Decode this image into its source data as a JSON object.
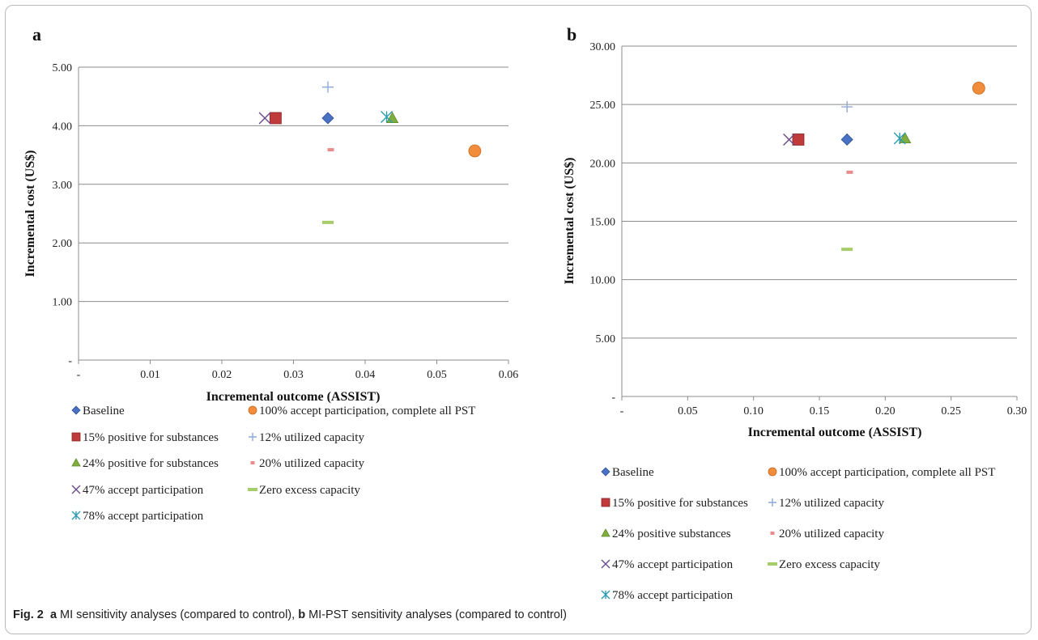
{
  "caption": {
    "label": "Fig. 2",
    "a_letter": "a",
    "a_text": "MI sensitivity analyses (compared to control),",
    "b_letter": "b",
    "b_text": "MI-PST sensitivity analyses (compared to control)"
  },
  "colors": {
    "baseline": "#4a72c4",
    "complete_all_pst": "#f08c3a",
    "pos15": "#c0393b",
    "util12": "#8fa9d8",
    "pos24": "#7fae3e",
    "util20": "#e88c8c",
    "accept47": "#6b4a8a",
    "zero_excess": "#a7cc6a",
    "accept78": "#2e9bb0"
  },
  "chart_data": [
    {
      "panel": "a",
      "type": "scatter",
      "xlabel": "Incremental outcome (ASSIST)",
      "ylabel": "Incremental cost (US$)",
      "xlim": [
        0,
        0.06
      ],
      "ylim": [
        0,
        5
      ],
      "xticks": [
        "-",
        "0.01",
        "0.02",
        "0.03",
        "0.04",
        "0.05",
        "0.06"
      ],
      "yticks": [
        "-",
        "1.00",
        "2.00",
        "3.00",
        "4.00",
        "5.00"
      ],
      "grid": "horizontal",
      "legend_position": "bottom",
      "series": [
        {
          "name": "Baseline",
          "marker": "diamond",
          "color_key": "baseline",
          "x": 0.0348,
          "y": 4.13
        },
        {
          "name": "100% accept participation, complete all PST",
          "marker": "circle",
          "color_key": "complete_all_pst",
          "x": 0.0553,
          "y": 3.57
        },
        {
          "name": "15% positive for substances",
          "marker": "square",
          "color_key": "pos15",
          "x": 0.0275,
          "y": 4.13
        },
        {
          "name": "12% utilized capacity",
          "marker": "plus",
          "color_key": "util12",
          "x": 0.0348,
          "y": 4.66
        },
        {
          "name": "24% positive for substances",
          "marker": "triangle",
          "color_key": "pos24",
          "x": 0.0438,
          "y": 4.13
        },
        {
          "name": "20% utilized capacity",
          "marker": "dash",
          "color_key": "util20",
          "x": 0.0352,
          "y": 3.59
        },
        {
          "name": "47% accept participation",
          "marker": "x",
          "color_key": "accept47",
          "x": 0.026,
          "y": 4.13
        },
        {
          "name": "Zero excess capacity",
          "marker": "longdash",
          "color_key": "zero_excess",
          "x": 0.0348,
          "y": 2.35
        },
        {
          "name": "78% accept participation",
          "marker": "star",
          "color_key": "accept78",
          "x": 0.043,
          "y": 4.15
        }
      ]
    },
    {
      "panel": "b",
      "type": "scatter",
      "xlabel": "Incremental outcome (ASSIST)",
      "ylabel": "Incremental cost (US$)",
      "xlim": [
        0,
        0.3
      ],
      "ylim": [
        0,
        30
      ],
      "xticks": [
        "-",
        "0.05",
        "0.10",
        "0.15",
        "0.20",
        "0.25",
        "0.30"
      ],
      "yticks": [
        "-",
        "5.00",
        "10.00",
        "15.00",
        "20.00",
        "25.00",
        "30.00"
      ],
      "grid": "horizontal",
      "legend_position": "bottom",
      "series": [
        {
          "name": "Baseline",
          "marker": "diamond",
          "color_key": "baseline",
          "x": 0.171,
          "y": 22.0
        },
        {
          "name": "100% accept participation, complete all PST",
          "marker": "circle",
          "color_key": "complete_all_pst",
          "x": 0.271,
          "y": 26.4
        },
        {
          "name": "15% positive for substances",
          "marker": "square",
          "color_key": "pos15",
          "x": 0.134,
          "y": 22.0
        },
        {
          "name": "12% utilized capacity",
          "marker": "plus",
          "color_key": "util12",
          "x": 0.171,
          "y": 24.8
        },
        {
          "name": "24% positive substances",
          "marker": "triangle",
          "color_key": "pos24",
          "x": 0.215,
          "y": 22.1
        },
        {
          "name": "20% utilized capacity",
          "marker": "dash",
          "color_key": "util20",
          "x": 0.173,
          "y": 19.2
        },
        {
          "name": "47% accept participation",
          "marker": "x",
          "color_key": "accept47",
          "x": 0.127,
          "y": 22.0
        },
        {
          "name": "Zero excess capacity",
          "marker": "longdash",
          "color_key": "zero_excess",
          "x": 0.171,
          "y": 12.6
        },
        {
          "name": "78% accept participation",
          "marker": "star",
          "color_key": "accept78",
          "x": 0.211,
          "y": 22.1
        }
      ]
    }
  ]
}
